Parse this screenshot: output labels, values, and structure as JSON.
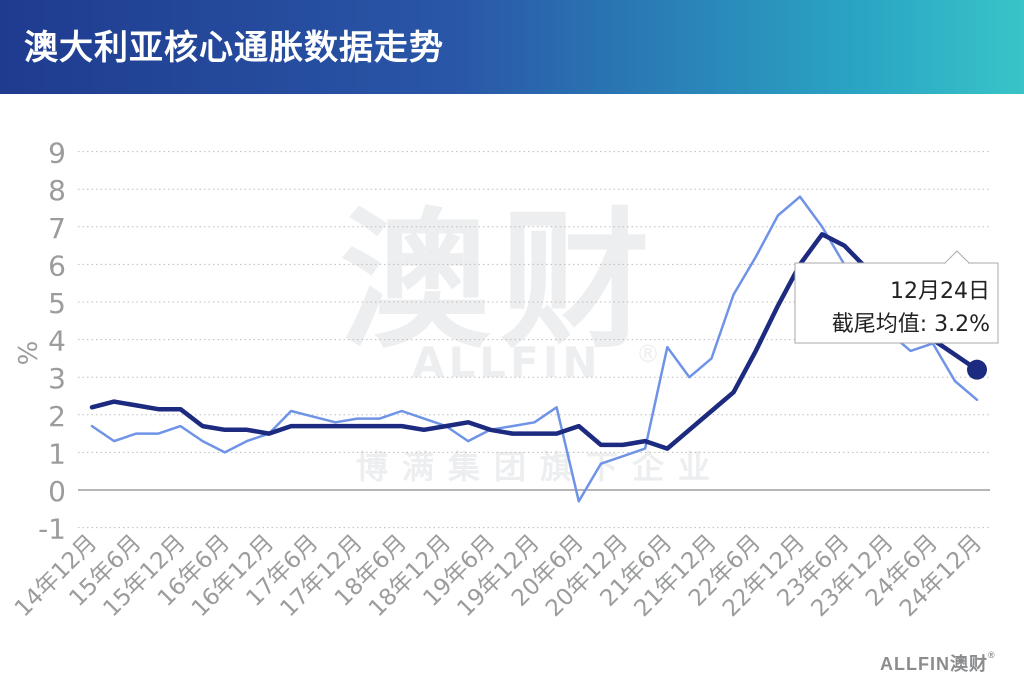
{
  "header": {
    "title": "澳大利亚核心通胀数据走势"
  },
  "watermark": {
    "big": "澳财",
    "english": "ALLFIN",
    "reg": "®",
    "subtitle": "博满集团旗下企业"
  },
  "brand": {
    "english": "ALLFIN",
    "chinese": "澳财",
    "reg": "®"
  },
  "callout": {
    "date": "12月24日",
    "label": "截尾均值: 3.2%"
  },
  "colors": {
    "series_dark": "#1c2a80",
    "series_light": "#6f93e6",
    "tick": "#9a9c9e",
    "grid": "#bdbdbd"
  },
  "chart_data": {
    "type": "line",
    "title": "澳大利亚核心通胀数据走势",
    "xlabel": "",
    "ylabel": "%",
    "ylim": [
      -1,
      9
    ],
    "yticks": [
      -1,
      0,
      1,
      2,
      3,
      4,
      5,
      6,
      7,
      8,
      9
    ],
    "grid": true,
    "x_tick_labels": [
      "14年12月",
      "15年6月",
      "15年12月",
      "16年6月",
      "16年12月",
      "17年6月",
      "17年12月",
      "18年6月",
      "18年12月",
      "19年6月",
      "19年12月",
      "20年6月",
      "20年12月",
      "21年6月",
      "21年12月",
      "22年6月",
      "22年12月",
      "23年6月",
      "23年12月",
      "24年6月",
      "24年12月"
    ],
    "x": [
      "14年12月",
      "15年3月",
      "15年6月",
      "15年9月",
      "15年12月",
      "16年3月",
      "16年6月",
      "16年9月",
      "16年12月",
      "17年3月",
      "17年6月",
      "17年9月",
      "17年12月",
      "18年3月",
      "18年6月",
      "18年9月",
      "18年12月",
      "19年3月",
      "19年6月",
      "19年9月",
      "19年12月",
      "20年3月",
      "20年6月",
      "20年9月",
      "20年12月",
      "21年3月",
      "21年6月",
      "21年9月",
      "21年12月",
      "22年3月",
      "22年6月",
      "22年9月",
      "22年12月",
      "23年3月",
      "23年6月",
      "23年9月",
      "23年12月",
      "24年3月",
      "24年6月",
      "24年9月",
      "24年12月"
    ],
    "series": [
      {
        "values": [
          2.2,
          2.35,
          2.25,
          2.15,
          2.15,
          1.7,
          1.6,
          1.6,
          1.5,
          1.7,
          1.7,
          1.7,
          1.7,
          1.7,
          1.7,
          1.6,
          1.7,
          1.8,
          1.6,
          1.5,
          1.5,
          1.5,
          1.7,
          1.2,
          1.2,
          1.3,
          1.1,
          1.6,
          2.1,
          2.6,
          3.7,
          4.9,
          6.0,
          6.8,
          6.5,
          5.9,
          5.1,
          4.5,
          4.0,
          3.6,
          3.2
        ]
      },
      {
        "values": [
          1.7,
          1.3,
          1.5,
          1.5,
          1.7,
          1.3,
          1.0,
          1.3,
          1.5,
          2.1,
          1.95,
          1.8,
          1.9,
          1.9,
          2.1,
          1.9,
          1.7,
          1.3,
          1.6,
          1.7,
          1.8,
          2.2,
          -0.3,
          0.7,
          0.9,
          1.1,
          3.8,
          3.0,
          3.5,
          5.2,
          6.2,
          7.3,
          7.8,
          7.0,
          6.0,
          5.2,
          4.2,
          3.7,
          3.9,
          2.9,
          2.4
        ]
      }
    ]
  }
}
